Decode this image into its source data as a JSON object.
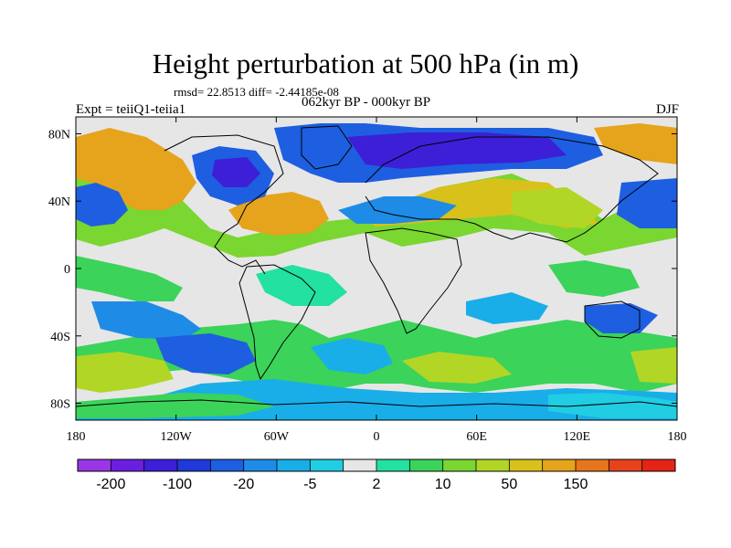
{
  "title": "Height perturbation at 500 hPa (in m)",
  "subtitle": "rmsd= 22.8513 diff= -2.44185e-08",
  "left_label": "Expt = teiiQ1-teiia1",
  "center_label": "062kyr BP - 000kyr BP",
  "right_label": "DJF",
  "lat_ticks": [
    "80N",
    "40N",
    "0",
    "40S",
    "80S"
  ],
  "lon_ticks": [
    "180",
    "120W",
    "60W",
    "0",
    "60E",
    "120E",
    "180"
  ],
  "colorbar": {
    "colors": [
      "#9a36e6",
      "#6a1fe0",
      "#3c1fd6",
      "#1f3ad8",
      "#1d5fe0",
      "#1e8ce6",
      "#19aee8",
      "#20cde2",
      "#e6e6e6",
      "#23e1a1",
      "#3bd35a",
      "#7ad630",
      "#b2d626",
      "#d8c11b",
      "#e6a31c",
      "#e6761d",
      "#e6431c",
      "#e62416"
    ],
    "labels": [
      "-200",
      "-100",
      "-20",
      "-5",
      "2",
      "10",
      "50",
      "150"
    ]
  },
  "map": {
    "lon_range": [
      -180,
      180
    ],
    "lat_range": [
      -90,
      90
    ],
    "background_color": "#e6e6e6"
  }
}
